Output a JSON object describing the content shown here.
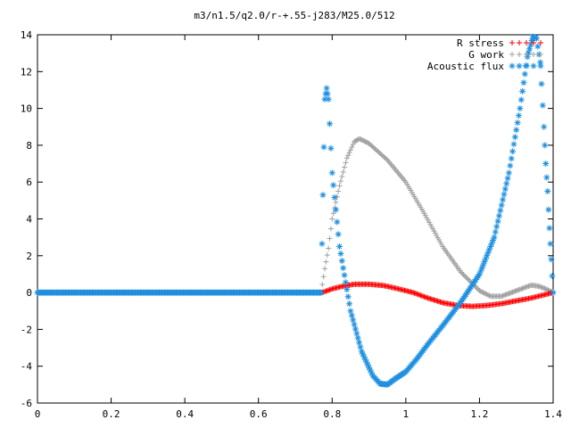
{
  "chart_data": {
    "type": "line",
    "title": "m3/n1.5/q2.0/r-+.55-j283/M25.0/512",
    "xlabel": "",
    "ylabel": "",
    "xlim": [
      0,
      1.4
    ],
    "ylim": [
      -6,
      14
    ],
    "x_ticks": [
      "0",
      "0.2",
      "0.4",
      "0.6",
      "0.8",
      "1",
      "1.2",
      "1.4"
    ],
    "y_ticks": [
      "-6",
      "-4",
      "-2",
      "0",
      "2",
      "4",
      "6",
      "8",
      "10",
      "12",
      "14"
    ],
    "x_tick_values": [
      0,
      0.2,
      0.4,
      0.6,
      0.8,
      1.0,
      1.2,
      1.4
    ],
    "y_tick_values": [
      -6,
      -4,
      -2,
      0,
      2,
      4,
      6,
      8,
      10,
      12,
      14
    ],
    "grid": false,
    "legend_position": "top-right",
    "series": [
      {
        "name": "R stress",
        "color": "#ff0000",
        "marker": "plus",
        "points": [
          [
            0,
            0
          ],
          [
            0.1,
            0
          ],
          [
            0.2,
            0
          ],
          [
            0.3,
            0
          ],
          [
            0.4,
            0
          ],
          [
            0.5,
            0
          ],
          [
            0.6,
            0
          ],
          [
            0.7,
            0
          ],
          [
            0.77,
            0
          ],
          [
            0.78,
            0.05
          ],
          [
            0.8,
            0.2
          ],
          [
            0.83,
            0.35
          ],
          [
            0.86,
            0.45
          ],
          [
            0.9,
            0.45
          ],
          [
            0.94,
            0.38
          ],
          [
            0.98,
            0.2
          ],
          [
            1.02,
            0
          ],
          [
            1.06,
            -0.3
          ],
          [
            1.1,
            -0.55
          ],
          [
            1.14,
            -0.7
          ],
          [
            1.18,
            -0.75
          ],
          [
            1.22,
            -0.7
          ],
          [
            1.26,
            -0.6
          ],
          [
            1.3,
            -0.45
          ],
          [
            1.34,
            -0.3
          ],
          [
            1.37,
            -0.15
          ],
          [
            1.4,
            0
          ]
        ]
      },
      {
        "name": "G work",
        "color": "#a0a0a0",
        "marker": "plus",
        "points": [
          [
            0,
            0
          ],
          [
            0.1,
            0
          ],
          [
            0.2,
            0
          ],
          [
            0.3,
            0
          ],
          [
            0.4,
            0
          ],
          [
            0.5,
            0
          ],
          [
            0.6,
            0
          ],
          [
            0.7,
            0
          ],
          [
            0.77,
            0
          ],
          [
            0.78,
            1.3
          ],
          [
            0.79,
            2.4
          ],
          [
            0.8,
            4.0
          ],
          [
            0.82,
            5.8
          ],
          [
            0.84,
            7.3
          ],
          [
            0.86,
            8.2
          ],
          [
            0.875,
            8.35
          ],
          [
            0.9,
            8.1
          ],
          [
            0.95,
            7.2
          ],
          [
            1.0,
            6.0
          ],
          [
            1.05,
            4.3
          ],
          [
            1.1,
            2.5
          ],
          [
            1.15,
            1.1
          ],
          [
            1.2,
            0.1
          ],
          [
            1.23,
            -0.2
          ],
          [
            1.26,
            -0.2
          ],
          [
            1.3,
            0.1
          ],
          [
            1.34,
            0.4
          ],
          [
            1.36,
            0.35
          ],
          [
            1.38,
            0.2
          ],
          [
            1.4,
            0
          ]
        ]
      },
      {
        "name": "Acoustic flux",
        "color": "#1e90e0",
        "marker": "star",
        "points": [
          [
            0,
            0
          ],
          [
            0.1,
            0
          ],
          [
            0.2,
            0
          ],
          [
            0.3,
            0
          ],
          [
            0.4,
            0
          ],
          [
            0.5,
            0
          ],
          [
            0.6,
            0
          ],
          [
            0.7,
            0
          ],
          [
            0.77,
            0
          ],
          [
            0.775,
            5.3
          ],
          [
            0.78,
            10.5
          ],
          [
            0.785,
            11.1
          ],
          [
            0.79,
            10.5
          ],
          [
            0.8,
            6.5
          ],
          [
            0.82,
            2.5
          ],
          [
            0.85,
            -1.0
          ],
          [
            0.88,
            -3.2
          ],
          [
            0.91,
            -4.5
          ],
          [
            0.93,
            -4.95
          ],
          [
            0.95,
            -5.0
          ],
          [
            0.97,
            -4.7
          ],
          [
            1.0,
            -4.3
          ],
          [
            1.03,
            -3.6
          ],
          [
            1.06,
            -2.8
          ],
          [
            1.1,
            -1.8
          ],
          [
            1.15,
            -0.5
          ],
          [
            1.2,
            1.0
          ],
          [
            1.24,
            3.0
          ],
          [
            1.28,
            6.5
          ],
          [
            1.31,
            10.0
          ],
          [
            1.33,
            12.8
          ],
          [
            1.345,
            13.9
          ],
          [
            1.355,
            13.8
          ],
          [
            1.365,
            12.5
          ],
          [
            1.375,
            9.0
          ],
          [
            1.38,
            7.0
          ],
          [
            1.385,
            5.5
          ],
          [
            1.39,
            3.5
          ],
          [
            1.395,
            1.8
          ],
          [
            1.4,
            0
          ]
        ]
      }
    ]
  }
}
